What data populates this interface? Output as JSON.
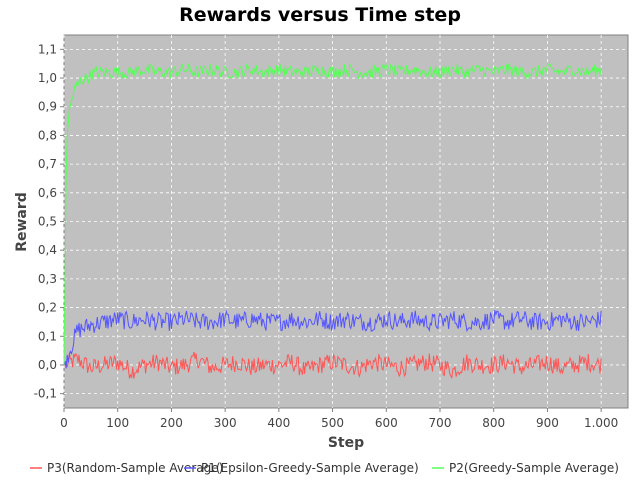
{
  "chart_data": {
    "type": "line",
    "title": "Rewards versus Time step",
    "xlabel": "Step",
    "ylabel": "Reward",
    "xlim": [
      0,
      1050
    ],
    "ylim": [
      -0.15,
      1.15
    ],
    "x_ticks": [
      0,
      100,
      200,
      300,
      400,
      500,
      600,
      700,
      800,
      900,
      1000
    ],
    "x_tick_labels": [
      "0",
      "100",
      "200",
      "300",
      "400",
      "500",
      "600",
      "700",
      "800",
      "900",
      "1.000"
    ],
    "y_ticks": [
      -0.1,
      0.0,
      0.1,
      0.2,
      0.3,
      0.4,
      0.5,
      0.6,
      0.7,
      0.8,
      0.9,
      1.0,
      1.1
    ],
    "y_tick_labels": [
      "-0,1",
      "0,0",
      "0,1",
      "0,2",
      "0,3",
      "0,4",
      "0,5",
      "0,6",
      "0,7",
      "0,8",
      "0,9",
      "1,0",
      "1,1"
    ],
    "grid": true,
    "legend_position": "bottom",
    "background_color": "#c0c0c0",
    "series": [
      {
        "name": "P3(Random-Sample Average)",
        "color": "#ff5555",
        "x": [
          0,
          25,
          50,
          75,
          100,
          125,
          150,
          175,
          200,
          225,
          250,
          275,
          300,
          325,
          350,
          375,
          400,
          425,
          450,
          475,
          500,
          525,
          550,
          575,
          600,
          625,
          650,
          675,
          700,
          725,
          750,
          775,
          800,
          825,
          850,
          875,
          900,
          925,
          950,
          975,
          1000
        ],
        "values": [
          0.0,
          0.02,
          -0.01,
          0.0,
          0.01,
          -0.02,
          0.0,
          0.01,
          -0.01,
          0.0,
          0.02,
          -0.01,
          0.0,
          0.01,
          -0.01,
          0.0,
          0.0,
          0.01,
          -0.02,
          0.0,
          0.01,
          0.0,
          -0.01,
          0.01,
          0.0,
          -0.01,
          0.0,
          0.01,
          0.0,
          -0.02,
          0.01,
          0.0,
          0.0,
          0.01,
          -0.01,
          0.0,
          0.01,
          -0.01,
          0.0,
          0.01,
          0.0
        ]
      },
      {
        "name": "P1(Epsilon-Greedy-Sample Average)",
        "color": "#5555ff",
        "x": [
          0,
          25,
          50,
          75,
          100,
          125,
          150,
          175,
          200,
          225,
          250,
          275,
          300,
          325,
          350,
          375,
          400,
          425,
          450,
          475,
          500,
          525,
          550,
          575,
          600,
          625,
          650,
          675,
          700,
          725,
          750,
          775,
          800,
          825,
          850,
          875,
          900,
          925,
          950,
          975,
          1000
        ],
        "values": [
          0.0,
          0.12,
          0.14,
          0.15,
          0.16,
          0.15,
          0.16,
          0.15,
          0.15,
          0.16,
          0.15,
          0.15,
          0.16,
          0.15,
          0.16,
          0.15,
          0.15,
          0.16,
          0.15,
          0.16,
          0.15,
          0.16,
          0.15,
          0.15,
          0.16,
          0.15,
          0.16,
          0.15,
          0.15,
          0.16,
          0.15,
          0.15,
          0.16,
          0.15,
          0.16,
          0.15,
          0.15,
          0.16,
          0.15,
          0.15,
          0.16
        ]
      },
      {
        "name": "P2(Greedy-Sample Average)",
        "color": "#55ff55",
        "x": [
          0,
          5,
          10,
          15,
          20,
          30,
          40,
          50,
          60,
          75,
          100,
          125,
          150,
          175,
          200,
          225,
          250,
          275,
          300,
          325,
          350,
          375,
          400,
          425,
          450,
          475,
          500,
          525,
          550,
          575,
          600,
          625,
          650,
          675,
          700,
          725,
          750,
          775,
          800,
          825,
          850,
          875,
          900,
          925,
          950,
          975,
          1000
        ],
        "values": [
          0.0,
          0.8,
          0.88,
          0.93,
          0.96,
          0.99,
          1.0,
          1.01,
          1.02,
          1.02,
          1.02,
          1.02,
          1.03,
          1.02,
          1.02,
          1.03,
          1.02,
          1.03,
          1.02,
          1.02,
          1.03,
          1.02,
          1.03,
          1.02,
          1.02,
          1.03,
          1.02,
          1.03,
          1.02,
          1.02,
          1.03,
          1.02,
          1.03,
          1.02,
          1.02,
          1.03,
          1.02,
          1.03,
          1.02,
          1.03,
          1.02,
          1.02,
          1.03,
          1.02,
          1.03,
          1.02,
          1.03
        ]
      }
    ]
  }
}
